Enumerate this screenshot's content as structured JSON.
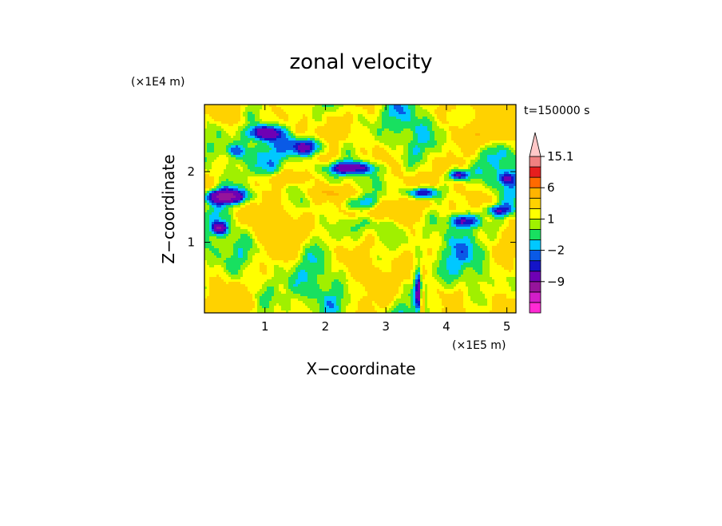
{
  "chart_data": {
    "type": "heatmap",
    "title": "zonal velocity",
    "xlabel": "X−coordinate",
    "ylabel": "Z−coordinate",
    "x_unit": "(×1E5 m)",
    "y_unit": "(×1E4 m)",
    "time_label": "t=150000 s",
    "xlim": [
      0,
      5.15
    ],
    "ylim": [
      0,
      2.95
    ],
    "x_ticks": [
      {
        "value": 1,
        "label": "1"
      },
      {
        "value": 2,
        "label": "2"
      },
      {
        "value": 3,
        "label": "3"
      },
      {
        "value": 4,
        "label": "4"
      },
      {
        "value": 5,
        "label": "5"
      }
    ],
    "y_ticks": [
      {
        "value": 1,
        "label": "1"
      },
      {
        "value": 2,
        "label": "2"
      }
    ],
    "colorbar": {
      "levels": [
        -15,
        -12,
        -9,
        -6,
        -3,
        -2,
        -1,
        0,
        1,
        2,
        3,
        6,
        9,
        12,
        15.1
      ],
      "colors": [
        "#ff2ad4",
        "#d21ec8",
        "#96149b",
        "#6e00b4",
        "#1414c8",
        "#0a5ae6",
        "#00c8ff",
        "#18e060",
        "#a0f000",
        "#ffff00",
        "#ffd200",
        "#ffb400",
        "#ff6a00",
        "#e61e1e",
        "#f08080",
        "#ffc8c8"
      ],
      "labels": [
        {
          "value": 15.1,
          "label": "15.1"
        },
        {
          "value": 6,
          "label": "6"
        },
        {
          "value": 1,
          "label": "1"
        },
        {
          "value": -2,
          "label": "−2"
        },
        {
          "value": -9,
          "label": "−9"
        }
      ]
    }
  }
}
